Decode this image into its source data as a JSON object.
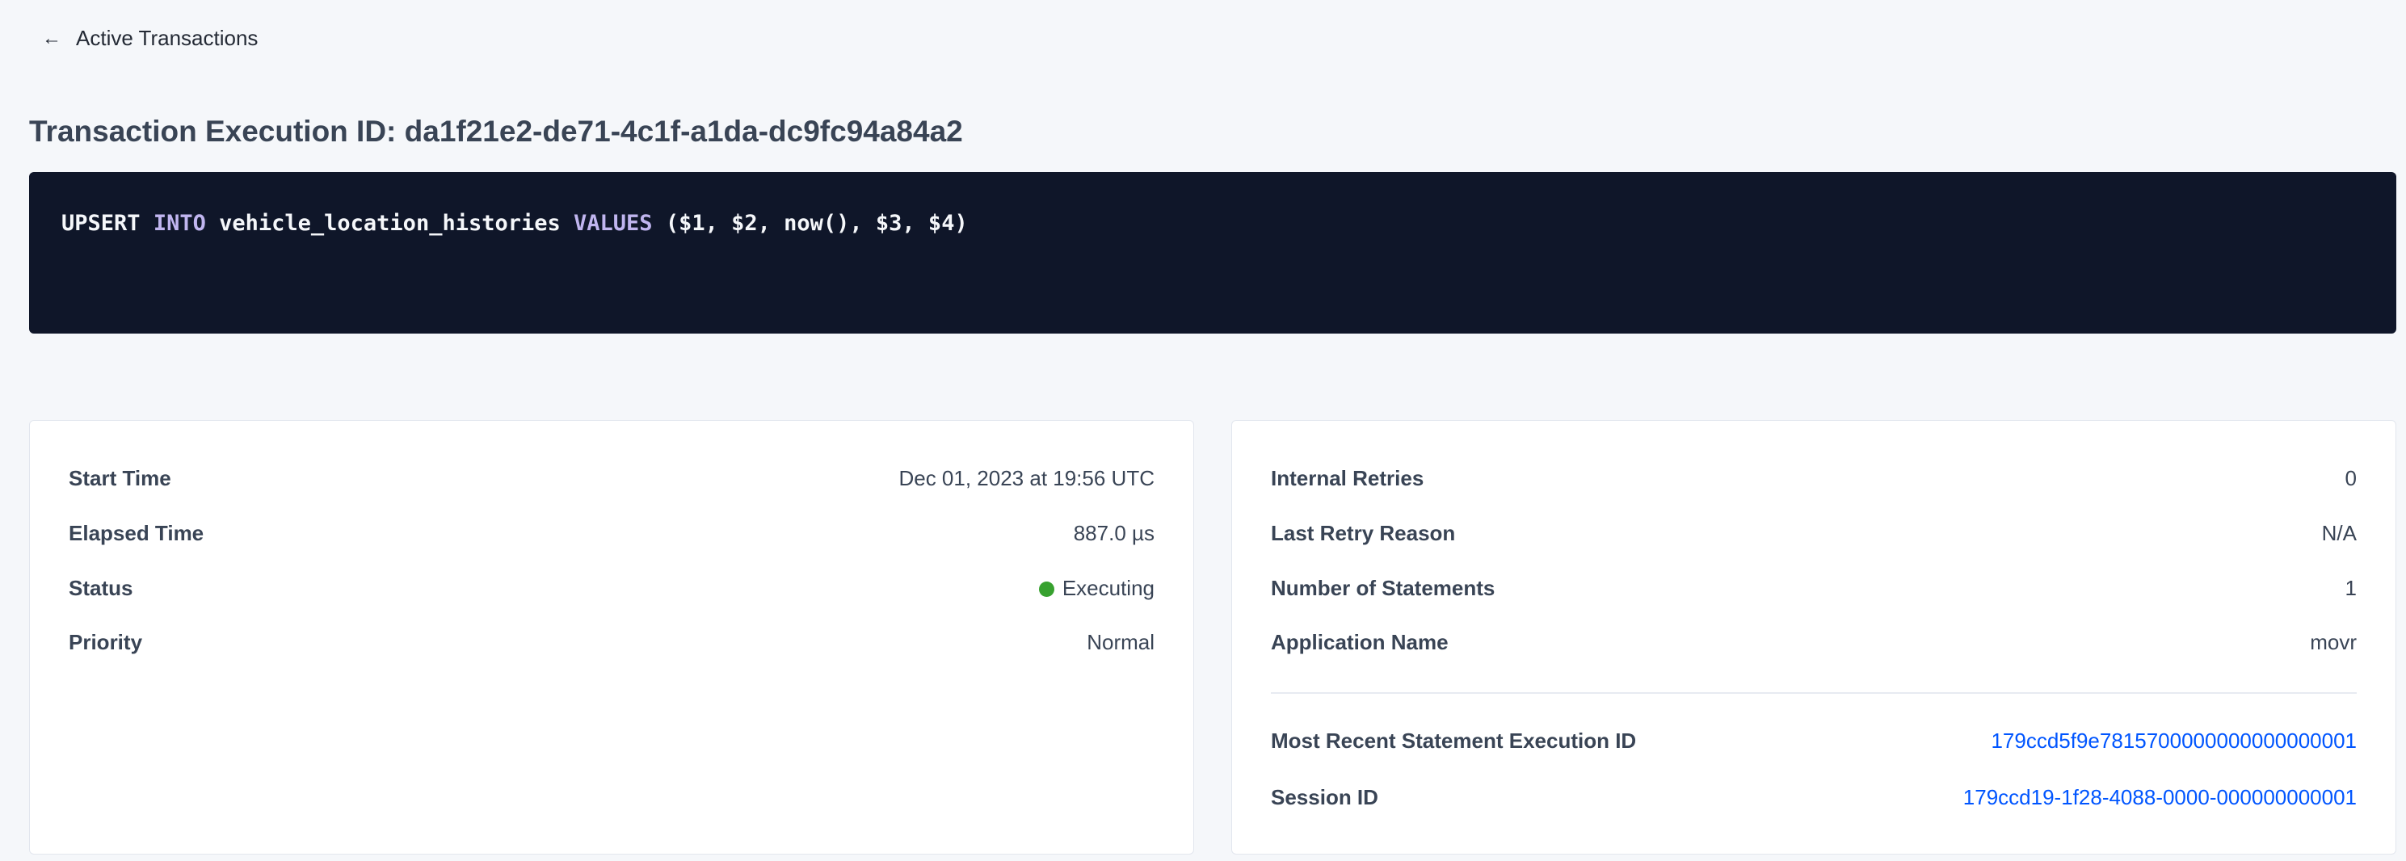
{
  "back_link": {
    "label": "Active Transactions",
    "icon": "arrow-left-icon"
  },
  "title": "Transaction Execution ID: da1f21e2-de71-4c1f-a1da-dc9fc94a84a2",
  "statement": {
    "kw1": "UPSERT",
    "kw2": "INTO",
    "table": "vehicle_location_histories",
    "kw3": "VALUES",
    "args": "($1, $2, now(), $3, $4)"
  },
  "left_card": {
    "rows": [
      {
        "label": "Start Time",
        "value": "Dec 01, 2023 at 19:56 UTC"
      },
      {
        "label": "Elapsed Time",
        "value": "887.0 µs"
      },
      {
        "label": "Status",
        "value": "Executing",
        "status_color": "#37a12f"
      },
      {
        "label": "Priority",
        "value": "Normal"
      }
    ]
  },
  "right_card": {
    "rows": [
      {
        "label": "Internal Retries",
        "value": "0"
      },
      {
        "label": "Last Retry Reason",
        "value": "N/A"
      },
      {
        "label": "Number of Statements",
        "value": "1"
      },
      {
        "label": "Application Name",
        "value": "movr"
      }
    ],
    "links": [
      {
        "label": "Most Recent Statement Execution ID",
        "value": "179ccd5f9e7815700000000000000001"
      },
      {
        "label": "Session ID",
        "value": "179ccd19-1f28-4088-0000-000000000001"
      }
    ]
  },
  "colors": {
    "link": "#0055ff",
    "code_bg": "#0f1629",
    "keyword": "#c0b5ef"
  }
}
